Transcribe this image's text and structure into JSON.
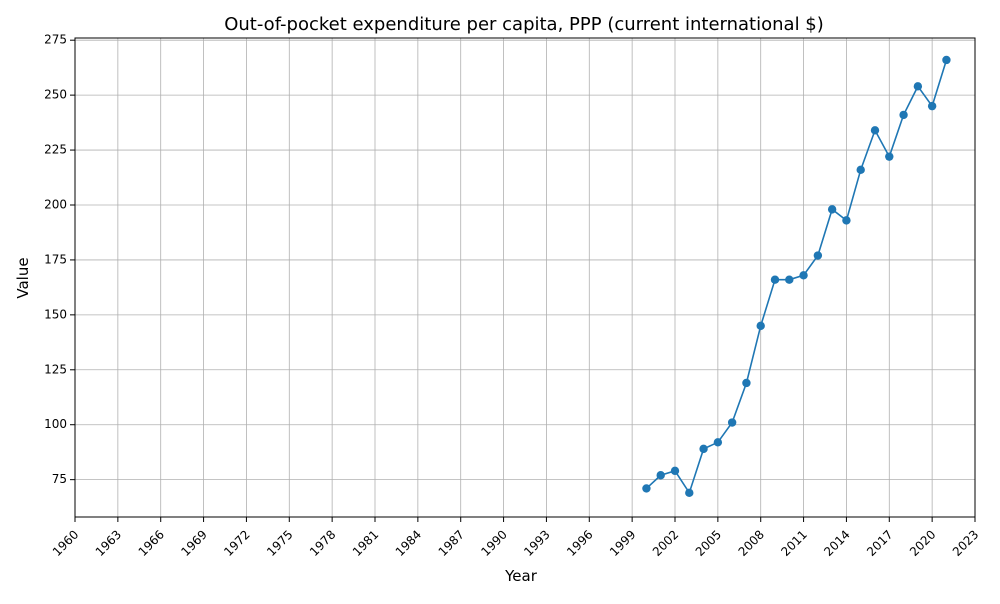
{
  "chart_data": {
    "type": "line",
    "title": "Out-of-pocket expenditure per capita, PPP (current international $)",
    "xlabel": "Year",
    "ylabel": "Value",
    "xlim": [
      1960,
      2023
    ],
    "ylim": [
      58,
      276
    ],
    "x_ticks": [
      1960,
      1963,
      1966,
      1969,
      1972,
      1975,
      1978,
      1981,
      1984,
      1987,
      1990,
      1993,
      1996,
      1999,
      2002,
      2005,
      2008,
      2011,
      2014,
      2017,
      2020,
      2023
    ],
    "x_tick_labels": [
      "1960",
      "1963",
      "1966",
      "1969",
      "1972",
      "1975",
      "1978",
      "1981",
      "1984",
      "1987",
      "1990",
      "1993",
      "1996",
      "1999",
      "2002",
      "2005",
      "2008",
      "2011",
      "2014",
      "2017",
      "2020",
      "2023"
    ],
    "y_ticks": [
      75,
      100,
      125,
      150,
      175,
      200,
      225,
      250,
      275
    ],
    "y_tick_labels": [
      "75",
      "100",
      "125",
      "150",
      "175",
      "200",
      "225",
      "250",
      "275"
    ],
    "grid": true,
    "line_color": "#1f77b4",
    "series": [
      {
        "x": [
          2000,
          2001,
          2002,
          2003,
          2004,
          2005,
          2006,
          2007,
          2008,
          2009,
          2010,
          2011,
          2012,
          2013,
          2014,
          2015,
          2016,
          2017,
          2018,
          2019,
          2020,
          2021
        ],
        "values": [
          71,
          77,
          79,
          69,
          89,
          92,
          101,
          119,
          145,
          166,
          166,
          168,
          177,
          198,
          193,
          216,
          234,
          222,
          241,
          254,
          245,
          266
        ]
      }
    ]
  }
}
